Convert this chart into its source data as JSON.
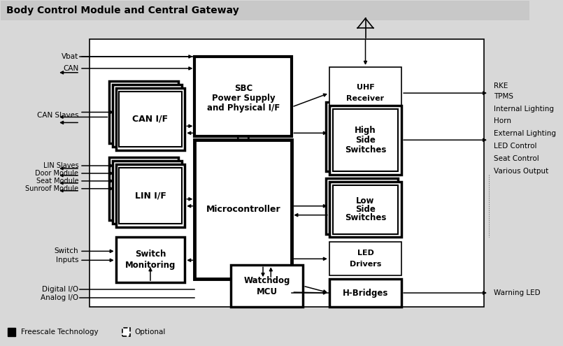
{
  "title": "Body Control Module and Central Gateway",
  "bg_color": "#d8d8d8",
  "white": "#ffffff",
  "black": "#000000",
  "title_fs": 10,
  "fs": 7.5,
  "fs_sm": 7,
  "legend1": "Freescale Technology",
  "legend2": "Optional"
}
